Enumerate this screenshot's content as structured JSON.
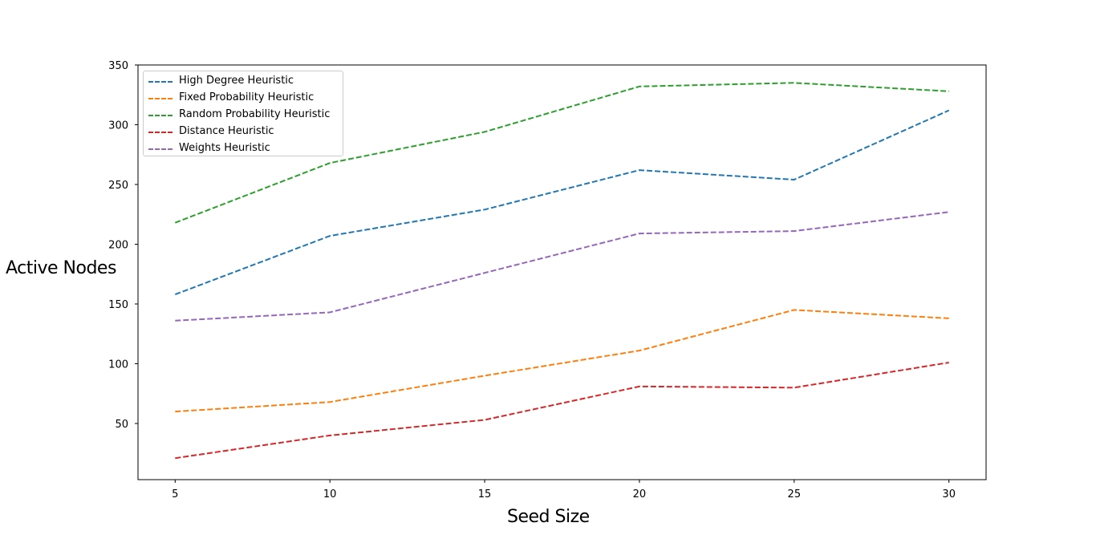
{
  "chart_data": {
    "type": "line",
    "x": [
      5,
      10,
      15,
      20,
      25,
      30
    ],
    "xlabel": "Seed Size",
    "ylabel": "Active Nodes",
    "xlim": [
      3.8,
      31.2
    ],
    "ylim": [
      3,
      350
    ],
    "xticks": [
      5,
      10,
      15,
      20,
      25,
      30
    ],
    "yticks": [
      50,
      100,
      150,
      200,
      250,
      300,
      350
    ],
    "line_style": "dashed",
    "grid": false,
    "legend_position": "top-left",
    "series": [
      {
        "name": "High Degree Heuristic",
        "color": "#1f77b4",
        "values": [
          158,
          207,
          229,
          262,
          254,
          312
        ]
      },
      {
        "name": "Fixed Probability Heuristic",
        "color": "#ff7f0e",
        "values": [
          60,
          68,
          90,
          111,
          145,
          138
        ]
      },
      {
        "name": "Random Probability Heuristic",
        "color": "#2ca02c",
        "values": [
          218,
          268,
          294,
          332,
          335,
          328
        ]
      },
      {
        "name": "Distance Heuristic",
        "color": "#d62728",
        "values": [
          21,
          40,
          53,
          81,
          80,
          101
        ]
      },
      {
        "name": "Weights Heuristic",
        "color": "#9467bd",
        "values": [
          136,
          143,
          176,
          209,
          211,
          227
        ]
      }
    ]
  }
}
